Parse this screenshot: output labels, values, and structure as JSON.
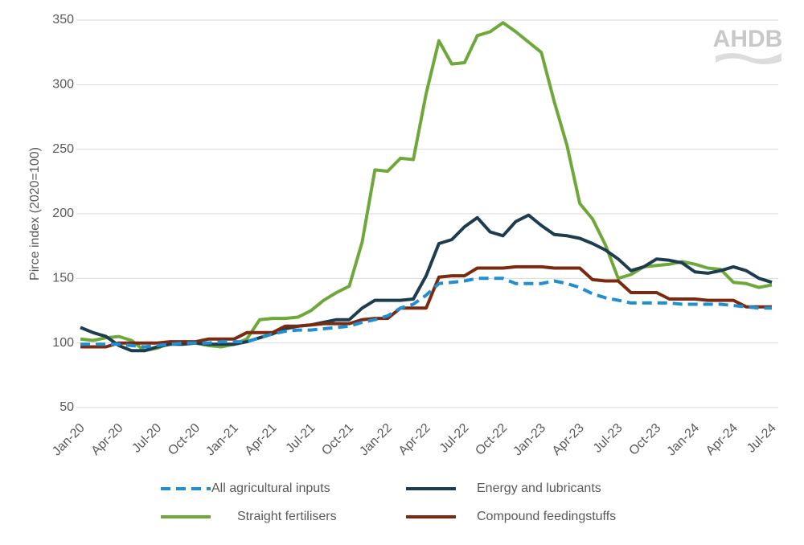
{
  "chart_data": {
    "type": "line",
    "watermark": "AHDB",
    "y_label": "Pirce index (2020=100)",
    "categories": [
      "Jan-20",
      null,
      null,
      "Apr-20",
      null,
      null,
      "Jul-20",
      null,
      null,
      "Oct-20",
      null,
      null,
      "Jan-21",
      null,
      null,
      "Apr-21",
      null,
      null,
      "Jul-21",
      null,
      null,
      "Oct-21",
      null,
      null,
      "Jan-22",
      null,
      null,
      "Apr-22",
      null,
      null,
      "Jul-22",
      null,
      null,
      "Oct-22",
      null,
      null,
      "Jan-23",
      null,
      null,
      "Apr-23",
      null,
      null,
      "Jul-23",
      null,
      null,
      "Oct-23",
      null,
      null,
      "Jan-24",
      null,
      null,
      "Apr-24",
      null,
      null,
      "Jul-24"
    ],
    "series": [
      {
        "name": "All agricultural inputs",
        "color": "#1f8fd0",
        "dashed": true,
        "values": [
          99,
          99,
          99,
          99,
          98,
          97,
          98,
          99,
          100,
          100,
          100,
          101,
          101,
          101,
          104,
          107,
          109,
          110,
          110,
          111,
          112,
          113,
          116,
          118,
          121,
          127,
          130,
          137,
          146,
          147,
          148,
          150,
          150,
          150,
          146,
          146,
          146,
          148,
          146,
          143,
          138,
          135,
          133,
          131,
          131,
          131,
          131,
          130,
          130,
          130,
          130,
          129,
          128,
          127,
          127
        ]
      },
      {
        "name": "Energy and lubricants",
        "color": "#1d3d4f",
        "dashed": false,
        "values": [
          112,
          108,
          105,
          98,
          94,
          94,
          97,
          99,
          99,
          100,
          99,
          99,
          99,
          101,
          104,
          107,
          111,
          113,
          114,
          116,
          118,
          118,
          127,
          133,
          133,
          133,
          134,
          152,
          177,
          180,
          190,
          197,
          186,
          183,
          194,
          199,
          191,
          184,
          183,
          181,
          177,
          172,
          165,
          156,
          159,
          165,
          164,
          162,
          155,
          154,
          156,
          159,
          156,
          150,
          147
        ]
      },
      {
        "name": "Straight fertilisers",
        "color": "#6fa83a",
        "dashed": false,
        "values": [
          103,
          102,
          104,
          105,
          102,
          94,
          96,
          100,
          100,
          100,
          98,
          97,
          99,
          103,
          118,
          119,
          119,
          120,
          125,
          133,
          139,
          144,
          178,
          234,
          233,
          243,
          242,
          293,
          334,
          316,
          317,
          338,
          341,
          348,
          341,
          333,
          325,
          287,
          253,
          208,
          196,
          176,
          150,
          153,
          159,
          160,
          161,
          163,
          161,
          158,
          157,
          147,
          146,
          143,
          145
        ]
      },
      {
        "name": "Compound feedingstuffs",
        "color": "#7b2a12",
        "dashed": false,
        "values": [
          97,
          97,
          97,
          100,
          100,
          100,
          100,
          101,
          101,
          101,
          103,
          103,
          103,
          108,
          108,
          108,
          113,
          113,
          114,
          115,
          115,
          115,
          118,
          119,
          119,
          127,
          127,
          127,
          151,
          152,
          152,
          158,
          158,
          158,
          159,
          159,
          159,
          158,
          158,
          158,
          149,
          148,
          148,
          139,
          139,
          139,
          134,
          134,
          134,
          133,
          133,
          133,
          128,
          128,
          128
        ]
      }
    ],
    "ylim": [
      50,
      350
    ],
    "yticks": [
      50,
      100,
      150,
      200,
      250,
      300,
      350
    ],
    "grid": true
  }
}
